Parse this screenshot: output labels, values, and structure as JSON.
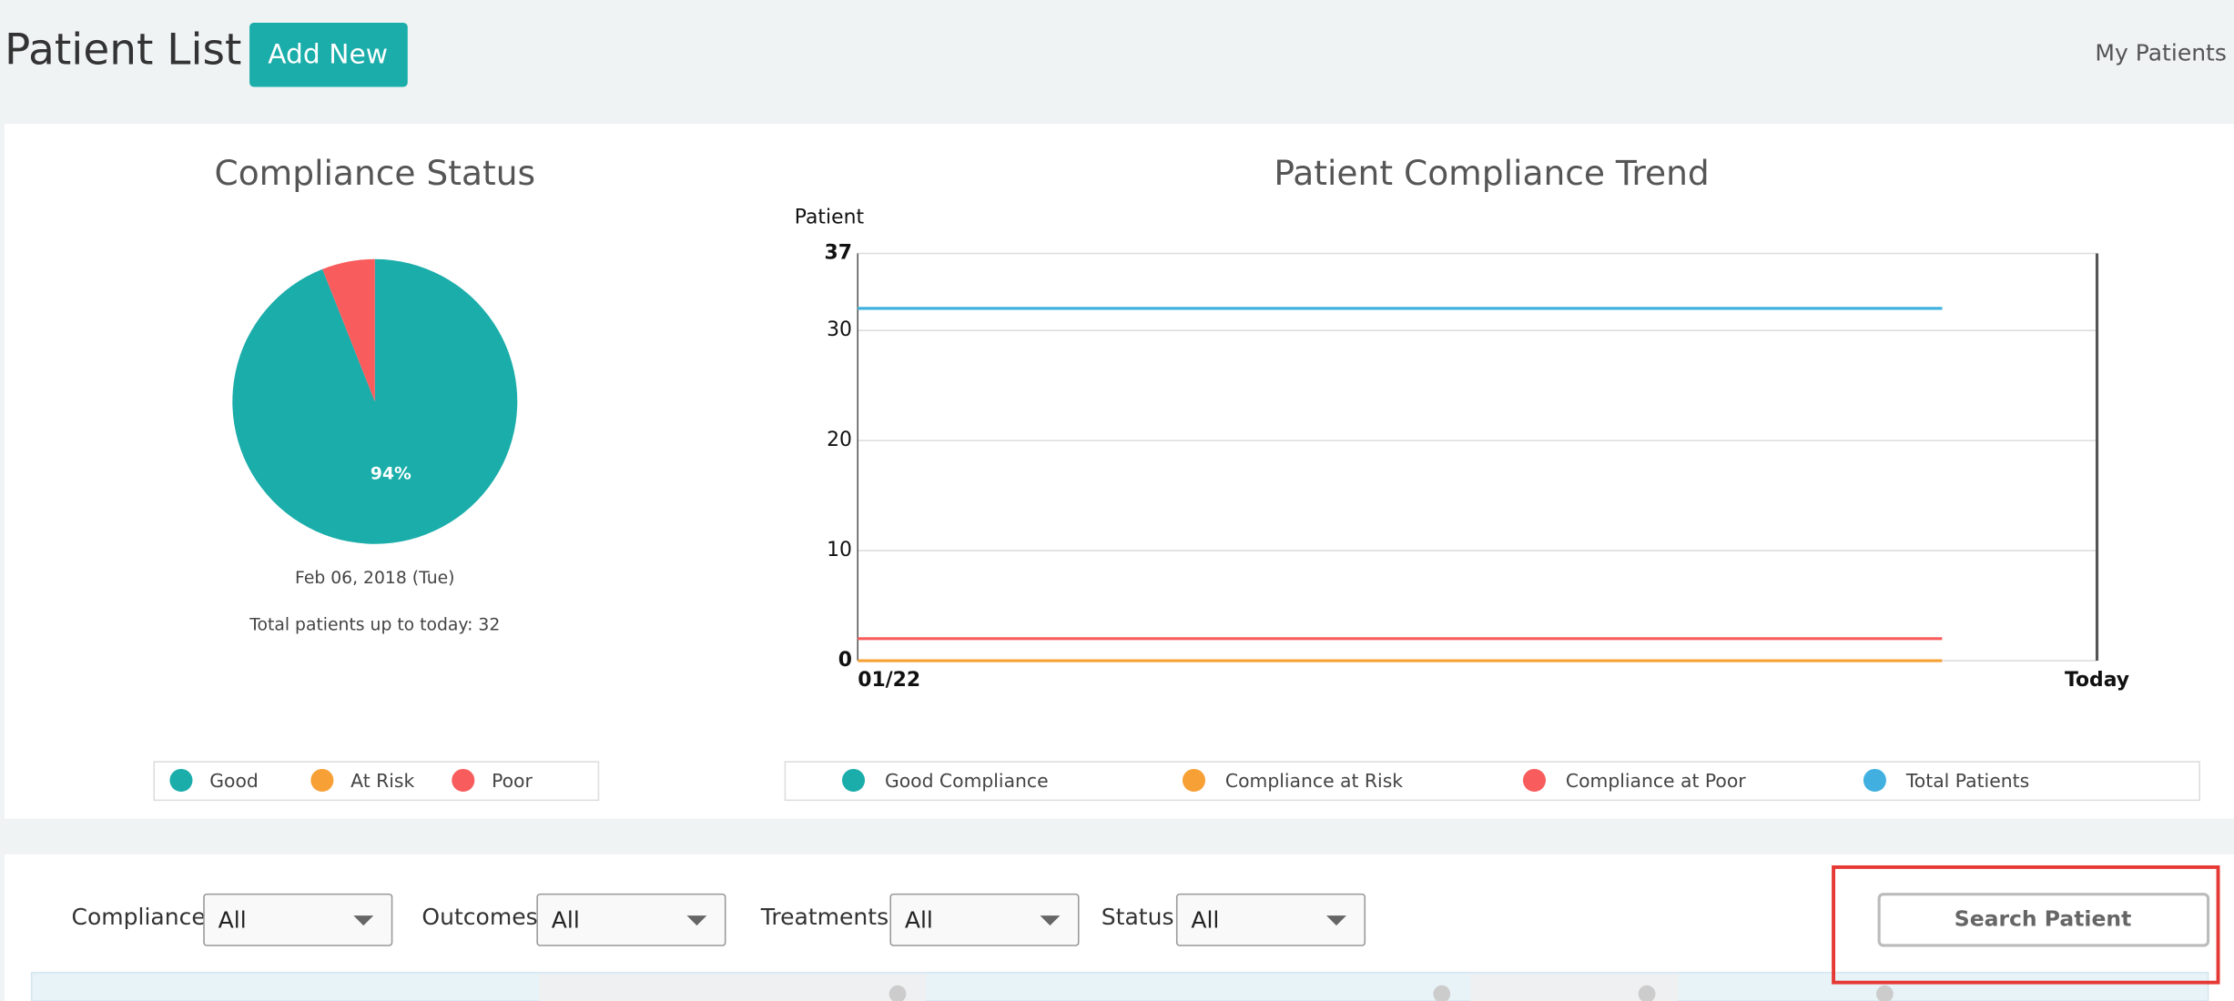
{
  "header": {
    "title": "Patient List",
    "add_button": "Add New",
    "nav": "My Patients"
  },
  "chart_data": [
    {
      "type": "pie",
      "title": "Compliance Status",
      "categories": [
        "Good",
        "At Risk",
        "Poor"
      ],
      "values": [
        94,
        0,
        6
      ],
      "value_labels": [
        "94%",
        null,
        null
      ],
      "colors": [
        "#1aadaa",
        "#f7a035",
        "#f95c5c"
      ],
      "date": "Feb 06, 2018 (Tue)",
      "note": "Total patients up to today: 32"
    },
    {
      "type": "line",
      "title": "Patient Compliance Trend",
      "y_label": "Patient",
      "x": [
        "01/22",
        null,
        null,
        null,
        null,
        null,
        null,
        null,
        "Today"
      ],
      "ylim": [
        0,
        37
      ],
      "yticks": [
        0,
        10,
        20,
        30,
        37
      ],
      "grid": true,
      "series": [
        {
          "name": "Good Compliance",
          "color": "#1aadaa",
          "values": [
            32,
            32,
            32,
            32,
            32,
            32,
            32,
            32,
            null
          ]
        },
        {
          "name": "Compliance at Risk",
          "color": "#f7a035",
          "values": [
            0,
            0,
            0,
            0,
            0,
            0,
            0,
            0,
            null
          ]
        },
        {
          "name": "Compliance at Poor",
          "color": "#f95c5c",
          "values": [
            2,
            2,
            2,
            2,
            2,
            2,
            2,
            2,
            null
          ]
        },
        {
          "name": "Total Patients",
          "color": "#41b0e0",
          "values": [
            32,
            32,
            32,
            32,
            32,
            32,
            32,
            32,
            null
          ]
        }
      ]
    }
  ],
  "filters": [
    {
      "label": "Compliance",
      "value": "All"
    },
    {
      "label": "Outcomes",
      "value": "All"
    },
    {
      "label": "Treatments",
      "value": "All"
    },
    {
      "label": "Status",
      "value": "All"
    }
  ],
  "search_button": "Search Patient"
}
